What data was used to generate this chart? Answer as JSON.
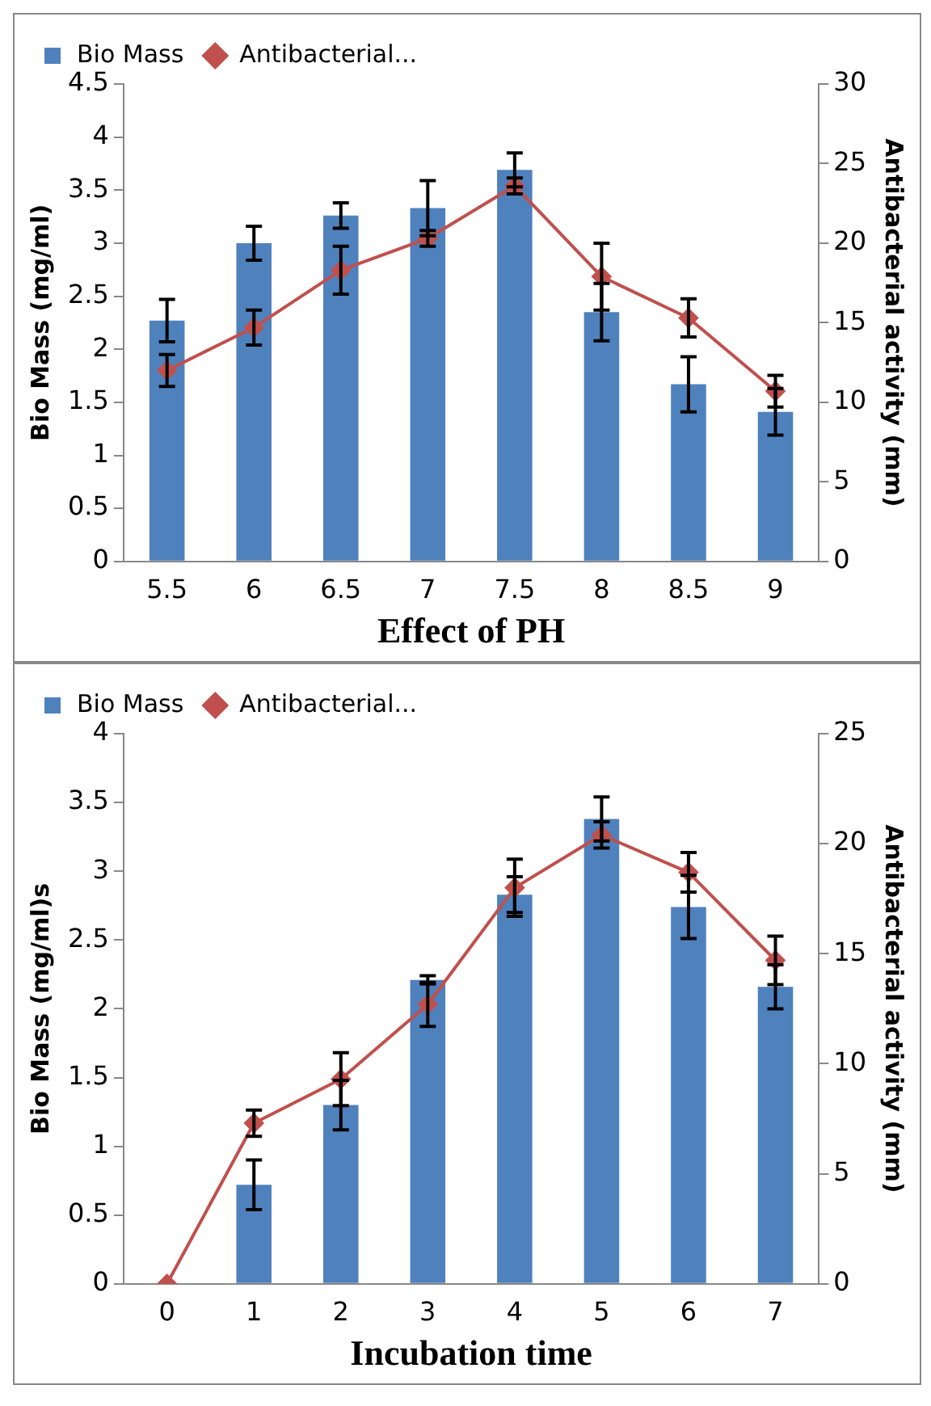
{
  "chart_data": [
    {
      "type": "bar",
      "categories": [
        "5.5",
        "6",
        "6.5",
        "7",
        "7.5",
        "8",
        "8.5",
        "9"
      ],
      "xlabel": "Effect of PH",
      "ylabel": "Bio Mass (mg/ml)",
      "y2label": "Antibacterial activity (mm)",
      "series": [
        {
          "name": "Bio Mass",
          "color": "#4f81bd",
          "values": [
            2.27,
            3.0,
            3.26,
            3.33,
            3.69,
            2.35,
            1.67,
            1.41
          ],
          "errors": [
            0.2,
            0.16,
            0.12,
            0.26,
            0.16,
            0.27,
            0.26,
            0.22
          ]
        },
        {
          "name": "Antibacterial...",
          "type": "line",
          "axis": "y2",
          "color": "#c0504d",
          "values": [
            12,
            14.7,
            18.3,
            20.3,
            23.6,
            17.9,
            15.3,
            10.7
          ],
          "errors": [
            1,
            1.1,
            1.5,
            0.5,
            0.5,
            2.1,
            1.2,
            1
          ]
        }
      ],
      "ylim": [
        0,
        4.5
      ],
      "yticks": [
        0,
        0.5,
        1,
        1.5,
        2,
        2.5,
        3,
        3.5,
        4,
        4.5
      ],
      "y2lim": [
        0,
        30
      ],
      "y2ticks": [
        0,
        5,
        10,
        15,
        20,
        25,
        30
      ],
      "grid": false,
      "legend": "top left",
      "marker": "diamond"
    },
    {
      "type": "bar",
      "categories": [
        "0",
        "1",
        "2",
        "3",
        "4",
        "5",
        "6",
        "7"
      ],
      "xlabel": "Incubation time",
      "ylabel": "Bio Mass (mg/ml)s",
      "y2label": "Antibacterial activity (mm)",
      "series": [
        {
          "name": "Bio Mass",
          "color": "#4f81bd",
          "values": [
            0,
            0.72,
            1.3,
            2.21,
            2.83,
            3.38,
            2.74,
            2.16
          ],
          "errors": [
            null,
            0.18,
            0.18,
            0.03,
            0.13,
            0.16,
            0.23,
            0.16
          ]
        },
        {
          "name": "Antibacterial...",
          "type": "line",
          "axis": "y2",
          "color": "#c0504d",
          "values": [
            0,
            7.3,
            9.3,
            12.7,
            18,
            20.4,
            18.7,
            14.7
          ],
          "errors": [
            null,
            0.6,
            1.2,
            1,
            1.3,
            0.6,
            0.9,
            1.1
          ]
        }
      ],
      "ylim": [
        0,
        4
      ],
      "yticks": [
        0,
        0.5,
        1,
        1.5,
        2,
        2.5,
        3,
        3.5,
        4
      ],
      "y2lim": [
        0,
        25
      ],
      "y2ticks": [
        0,
        5,
        10,
        15,
        20,
        25
      ],
      "grid": false,
      "legend": "top left",
      "marker": "diamond"
    }
  ]
}
